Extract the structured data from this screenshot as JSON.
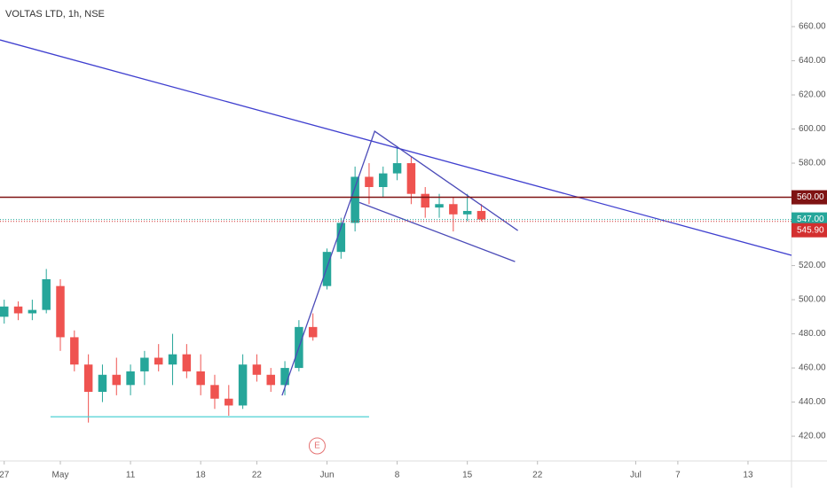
{
  "chart_data": {
    "type": "candlestick",
    "title": "VOLTAS LTD, 1h, NSE",
    "up_color": "#26a69a",
    "down_color": "#ef5350",
    "xlim": [
      -0.3,
      56.1
    ],
    "ylim": [
      405.5,
      675.6
    ],
    "xticks": [
      {
        "value": 0,
        "label": "27"
      },
      {
        "value": 4,
        "label": "May"
      },
      {
        "value": 9,
        "label": "11"
      },
      {
        "value": 14,
        "label": "18"
      },
      {
        "value": 18,
        "label": "22"
      },
      {
        "value": 23,
        "label": "Jun"
      },
      {
        "value": 28,
        "label": "8"
      },
      {
        "value": 33,
        "label": "15"
      },
      {
        "value": 38,
        "label": "22"
      },
      {
        "value": 45,
        "label": "Jul"
      },
      {
        "value": 48,
        "label": "7"
      },
      {
        "value": 53,
        "label": "13"
      }
    ],
    "yticks": [
      {
        "value": 420,
        "label": "420.00"
      },
      {
        "value": 440,
        "label": "440.00"
      },
      {
        "value": 460,
        "label": "460.00"
      },
      {
        "value": 480,
        "label": "480.00"
      },
      {
        "value": 500,
        "label": "500.00"
      },
      {
        "value": 520,
        "label": "520.00"
      },
      {
        "value": 540,
        "label": "540.00"
      },
      {
        "value": 560,
        "label": "560.00"
      },
      {
        "value": 580,
        "label": "580.00"
      },
      {
        "value": 600,
        "label": "600.00"
      },
      {
        "value": 620,
        "label": "620.00"
      },
      {
        "value": 640,
        "label": "640.00"
      },
      {
        "value": 660,
        "label": "660.00"
      }
    ],
    "x": [
      0,
      1,
      2,
      3,
      4,
      5,
      6,
      7,
      8,
      9,
      10,
      11,
      12,
      13,
      14,
      15,
      16,
      17,
      18,
      19,
      20,
      21,
      22,
      23,
      24,
      25,
      26,
      27,
      28,
      29,
      30,
      31,
      32,
      33,
      34
    ],
    "candles": [
      [
        490,
        500,
        486,
        496
      ],
      [
        496,
        499,
        488,
        492
      ],
      [
        492,
        500,
        488,
        494
      ],
      [
        494,
        518,
        492,
        512
      ],
      [
        508,
        512,
        470,
        478
      ],
      [
        478,
        482,
        458,
        462
      ],
      [
        462,
        468,
        428,
        446
      ],
      [
        446,
        462,
        440,
        456
      ],
      [
        456,
        466,
        444,
        450
      ],
      [
        450,
        462,
        444,
        458
      ],
      [
        458,
        470,
        450,
        466
      ],
      [
        466,
        474,
        458,
        462
      ],
      [
        462,
        480,
        450,
        468
      ],
      [
        468,
        474,
        454,
        458
      ],
      [
        458,
        468,
        444,
        450
      ],
      [
        450,
        456,
        436,
        442
      ],
      [
        442,
        450,
        432,
        438
      ],
      [
        438,
        468,
        436,
        462
      ],
      [
        462,
        468,
        452,
        456
      ],
      [
        456,
        460,
        446,
        450
      ],
      [
        450,
        464,
        444,
        460
      ],
      [
        460,
        488,
        458,
        484
      ],
      [
        484,
        492,
        476,
        478
      ],
      [
        508,
        530,
        506,
        528
      ],
      [
        528,
        548,
        524,
        545
      ],
      [
        545,
        578,
        540,
        572
      ],
      [
        572,
        580,
        556,
        566
      ],
      [
        566,
        578,
        560,
        574
      ],
      [
        574,
        590,
        570,
        580
      ],
      [
        580,
        584,
        556,
        562
      ],
      [
        562,
        566,
        548,
        554
      ],
      [
        554,
        562,
        548,
        556
      ],
      [
        556,
        560,
        540,
        550
      ],
      [
        550,
        562,
        546,
        552
      ],
      [
        552,
        556,
        546,
        547
      ]
    ],
    "drawings": [
      {
        "color": "#3f3fcf",
        "x": [
          -0.3,
          56.1
        ],
        "y": [
          652.2,
          526
        ]
      },
      {
        "color": "#4b4bb8",
        "x": [
          19.8,
          26.4,
          36.6
        ],
        "y": [
          443.9,
          598.7,
          540.5
        ]
      },
      {
        "color": "#4b4bb8",
        "x": [
          25.3,
          36.4
        ],
        "y": [
          557,
          522.3
        ]
      },
      {
        "color": "#4dd0d4",
        "x": [
          3.3,
          26.0
        ],
        "y": [
          431.4,
          431.4
        ]
      }
    ],
    "price_lines": [
      {
        "value": 560,
        "label": "560.00",
        "color": "#7f1313",
        "dash": false
      },
      {
        "value": 547,
        "label": "547.00",
        "color": "#26a69a",
        "dash": true
      },
      {
        "value": 545.9,
        "label": "545.90",
        "color": "#d32f2f",
        "dash": true
      }
    ],
    "event": {
      "x": 22.3,
      "label": "E"
    }
  }
}
